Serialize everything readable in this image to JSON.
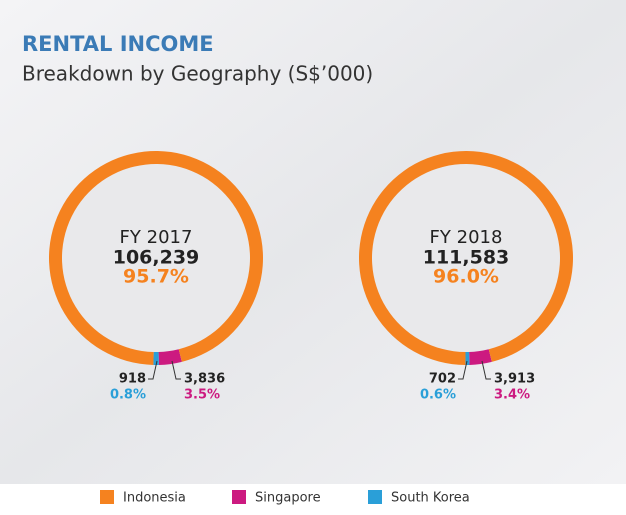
{
  "title": "RENTAL INCOME",
  "subtitle": "Breakdown by Geography (S$’000)",
  "chart_data": [
    {
      "type": "donut",
      "title": "FY 2017",
      "categories": [
        "Indonesia",
        "Singapore",
        "South Korea"
      ],
      "colors": [
        "#f5821f",
        "#cc1a80",
        "#2a9fd8"
      ],
      "values": [
        106239,
        3836,
        918
      ],
      "value_labels": [
        "106,239",
        "3,836",
        "918"
      ],
      "percents": [
        95.7,
        3.5,
        0.8
      ],
      "percent_labels": [
        "95.7%",
        "3.5%",
        "0.8%"
      ]
    },
    {
      "type": "donut",
      "title": "FY 2018",
      "categories": [
        "Indonesia",
        "Singapore",
        "South Korea"
      ],
      "colors": [
        "#f5821f",
        "#cc1a80",
        "#2a9fd8"
      ],
      "values": [
        111583,
        3913,
        702
      ],
      "value_labels": [
        "111,583",
        "3,913",
        "702"
      ],
      "percents": [
        96.0,
        3.4,
        0.6
      ],
      "percent_labels": [
        "96.0%",
        "3.4%",
        "0.6%"
      ]
    }
  ]
}
